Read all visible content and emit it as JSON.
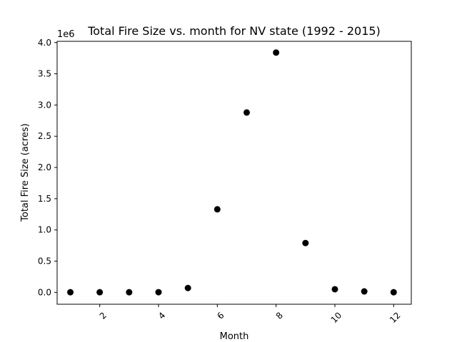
{
  "chart_data": {
    "type": "scatter",
    "title": "Total Fire Size vs. month for NV state (1992 - 2015)",
    "xlabel": "Month",
    "ylabel": "Total Fire Size (acres)",
    "y_offset_label": "1e6",
    "xlim": [
      0.55,
      12.6
    ],
    "ylim": [
      -0.19,
      4.02
    ],
    "x_ticks": [
      2,
      4,
      6,
      8,
      10,
      12
    ],
    "x_tick_labels": [
      "2",
      "4",
      "6",
      "8",
      "10",
      "12"
    ],
    "x_tick_rotation": 45,
    "y_ticks": [
      0.0,
      0.5,
      1.0,
      1.5,
      2.0,
      2.5,
      3.0,
      3.5,
      4.0
    ],
    "y_tick_labels": [
      "0.0",
      "0.5",
      "1.0",
      "1.5",
      "2.0",
      "2.5",
      "3.0",
      "3.5",
      "4.0"
    ],
    "grid": false,
    "marker_color": "#000000",
    "series": [
      {
        "x": [
          1,
          2,
          3,
          4,
          5,
          6,
          7,
          8,
          9,
          10,
          11,
          12
        ],
        "y": [
          0.002,
          0.002,
          0.002,
          0.003,
          0.07,
          1.33,
          2.88,
          3.84,
          0.79,
          0.05,
          0.015,
          0.002
        ]
      }
    ]
  }
}
